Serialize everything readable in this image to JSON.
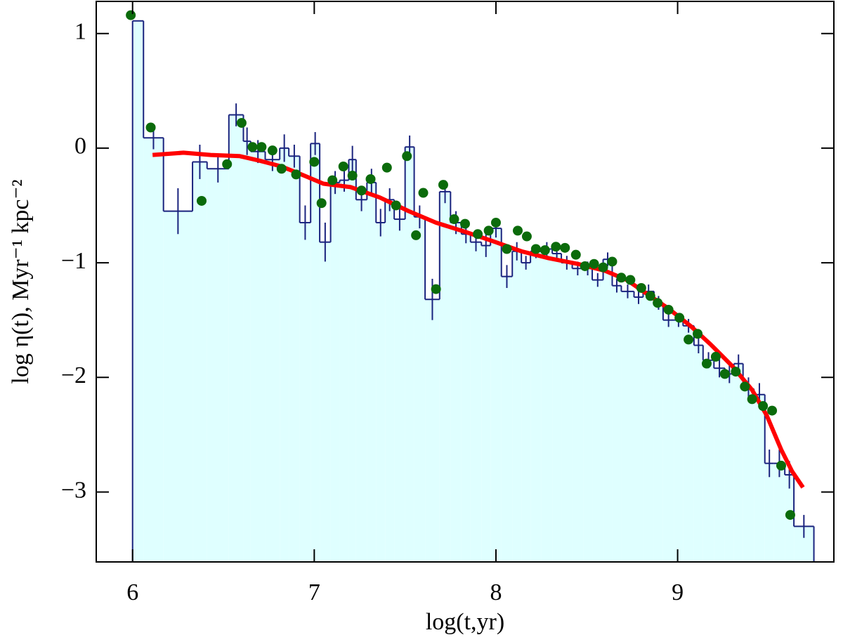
{
  "chart_data": {
    "type": "histogram",
    "xlabel": "log(t,yr)",
    "ylabel": "log η(t),  Myr⁻¹  kpc⁻²",
    "xlim": [
      5.8,
      9.86
    ],
    "ylim": [
      -3.61,
      1.28
    ],
    "xticks": [
      6,
      7,
      8,
      9
    ],
    "yticks": [
      1,
      0,
      {
        "value": -1,
        "label": "−1"
      },
      {
        "value": -2,
        "label": "−2"
      },
      {
        "value": -3,
        "label": "−3"
      }
    ],
    "color": "#1a237e",
    "fill": "#dfffff",
    "bins": [
      6.0,
      6.06,
      6.17,
      6.33,
      6.41,
      6.53,
      6.61,
      6.65,
      6.73,
      6.81,
      6.86,
      6.92,
      6.98,
      7.03,
      7.09,
      7.14,
      7.19,
      7.23,
      7.29,
      7.34,
      7.39,
      7.44,
      7.5,
      7.55,
      7.61,
      7.69,
      7.75,
      7.81,
      7.86,
      7.92,
      7.97,
      8.03,
      8.09,
      8.14,
      8.19,
      8.25,
      8.31,
      8.36,
      8.42,
      8.48,
      8.53,
      8.59,
      8.64,
      8.69,
      8.76,
      8.81,
      8.87,
      8.92,
      8.98,
      9.03,
      9.09,
      9.14,
      9.2,
      9.26,
      9.31,
      9.36,
      9.42,
      9.48,
      9.53,
      9.59,
      9.64,
      9.75
    ],
    "counts": [
      1.11,
      0.09,
      -0.55,
      -0.12,
      -0.18,
      0.29,
      0.06,
      -0.03,
      -0.1,
      0.0,
      -0.07,
      -0.65,
      0.04,
      -0.82,
      -0.3,
      -0.28,
      -0.1,
      -0.45,
      -0.3,
      -0.65,
      -0.45,
      -0.62,
      0.01,
      -0.6,
      -1.32,
      -0.38,
      -0.65,
      -0.75,
      -0.82,
      -0.85,
      -0.7,
      -1.12,
      -0.9,
      -1.0,
      -0.9,
      -0.88,
      -0.92,
      -1.0,
      -1.05,
      -1.05,
      -1.15,
      -0.97,
      -1.2,
      -1.25,
      -1.3,
      -1.25,
      -1.35,
      -1.5,
      -1.5,
      -1.55,
      -1.72,
      -1.85,
      -1.92,
      -1.97,
      -1.88,
      -2.1,
      -2.15,
      -2.75,
      -2.75,
      -2.85,
      -3.3
    ],
    "errors": [
      null,
      0.1,
      0.2,
      0.15,
      0.12,
      0.1,
      0.12,
      0.1,
      0.1,
      0.12,
      0.1,
      0.15,
      0.1,
      0.17,
      0.1,
      0.1,
      0.12,
      0.1,
      0.12,
      0.12,
      0.1,
      0.1,
      0.1,
      0.1,
      0.18,
      0.1,
      0.1,
      0.08,
      0.08,
      0.1,
      0.08,
      0.1,
      0.08,
      0.06,
      0.06,
      0.06,
      0.06,
      0.06,
      0.06,
      0.06,
      0.06,
      0.06,
      0.06,
      0.06,
      0.06,
      0.06,
      0.06,
      0.06,
      0.06,
      0.06,
      0.07,
      0.07,
      0.08,
      0.08,
      0.08,
      0.1,
      0.1,
      0.12,
      0.12,
      0.12,
      0.1
    ],
    "points": {
      "color": "#0b6b0b",
      "x": [
        5.99,
        6.1,
        6.38,
        6.52,
        6.6,
        6.66,
        6.71,
        6.77,
        6.82,
        6.9,
        7.0,
        7.04,
        7.1,
        7.16,
        7.21,
        7.26,
        7.31,
        7.4,
        7.45,
        7.51,
        7.56,
        7.6,
        7.67,
        7.71,
        7.77,
        7.83,
        7.9,
        7.96,
        8.0,
        8.06,
        8.12,
        8.17,
        8.22,
        8.27,
        8.33,
        8.38,
        8.44,
        8.49,
        8.54,
        8.59,
        8.64,
        8.69,
        8.74,
        8.8,
        8.85,
        8.89,
        8.95,
        9.01,
        9.06,
        9.11,
        9.16,
        9.21,
        9.26,
        9.32,
        9.37,
        9.41,
        9.47,
        9.52,
        9.57,
        9.62
      ],
      "y": [
        1.16,
        0.18,
        -0.46,
        -0.14,
        0.22,
        0.01,
        0.01,
        -0.02,
        -0.18,
        -0.23,
        -0.12,
        -0.48,
        -0.28,
        -0.16,
        -0.24,
        -0.37,
        -0.27,
        -0.17,
        -0.5,
        -0.07,
        -0.76,
        -0.39,
        -1.23,
        -0.32,
        -0.62,
        -0.66,
        -0.75,
        -0.72,
        -0.65,
        -0.88,
        -0.72,
        -0.77,
        -0.88,
        -0.89,
        -0.86,
        -0.87,
        -0.93,
        -1.03,
        -1.01,
        -1.04,
        -0.99,
        -1.13,
        -1.15,
        -1.22,
        -1.29,
        -1.35,
        -1.41,
        -1.48,
        -1.67,
        -1.62,
        -1.88,
        -1.82,
        -1.97,
        -1.95,
        -2.08,
        -2.19,
        -2.25,
        -2.29,
        -2.77,
        -3.2
      ]
    },
    "line": {
      "color": "#ff0000",
      "x": [
        6.11,
        6.28,
        6.43,
        6.59,
        6.7,
        6.82,
        6.93,
        7.05,
        7.2,
        7.36,
        7.52,
        7.67,
        7.83,
        7.98,
        8.14,
        8.29,
        8.45,
        8.6,
        8.72,
        8.83,
        8.95,
        9.07,
        9.18,
        9.3,
        9.41,
        9.49,
        9.57,
        9.63,
        9.69
      ],
      "y": [
        -0.06,
        -0.04,
        -0.06,
        -0.07,
        -0.11,
        -0.16,
        -0.23,
        -0.31,
        -0.34,
        -0.43,
        -0.55,
        -0.65,
        -0.73,
        -0.81,
        -0.9,
        -0.96,
        -1.01,
        -1.07,
        -1.15,
        -1.27,
        -1.4,
        -1.55,
        -1.71,
        -1.9,
        -2.11,
        -2.33,
        -2.63,
        -2.82,
        -2.96
      ]
    }
  }
}
